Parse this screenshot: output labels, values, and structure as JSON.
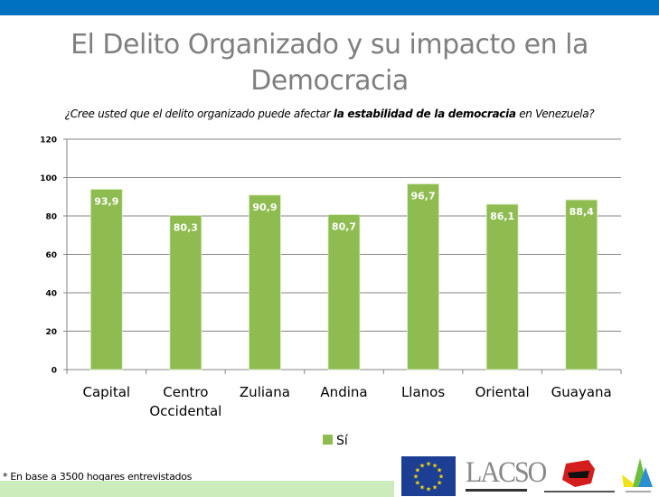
{
  "header": {
    "title_line1": "El Delito Organizado y su impacto en la",
    "title_line2": "Democracia",
    "question_prefix": "¿Cree usted que el delito organizado puede afectar ",
    "question_bold": "la estabilidad de la democracia",
    "question_suffix": " en Venezuela?"
  },
  "colors": {
    "topbar": "#0070c0",
    "bar": "#8fbc51",
    "title": "#7f7f7f",
    "footer_band": "#ccecbc"
  },
  "chart_data": {
    "type": "bar",
    "title": "¿Cree usted que el delito organizado puede afectar la estabilidad de la democracia en Venezuela?",
    "xlabel": "",
    "ylabel": "",
    "categories": [
      "Capital",
      "Centro Occidental",
      "Zuliana",
      "Andina",
      "Llanos",
      "Oriental",
      "Guayana"
    ],
    "category_lines": [
      [
        "Capital"
      ],
      [
        "Centro",
        "Occidental"
      ],
      [
        "Zuliana"
      ],
      [
        "Andina"
      ],
      [
        "Llanos"
      ],
      [
        "Oriental"
      ],
      [
        "Guayana"
      ]
    ],
    "series": [
      {
        "name": "Sí",
        "values": [
          93.9,
          80.3,
          90.9,
          80.7,
          96.7,
          86.1,
          88.4
        ],
        "labels": [
          "93,9",
          "80,3",
          "90,9",
          "80,7",
          "96,7",
          "86,1",
          "88,4"
        ]
      }
    ],
    "ylim": [
      0,
      120
    ],
    "yticks": [
      0,
      20,
      40,
      60,
      80,
      100,
      120
    ],
    "grid": true,
    "legend": "bottom-center"
  },
  "footer": {
    "note": "* En base a 3500  hogares entrevistados",
    "logos": [
      "eu-flag-logo",
      "lacso-logo",
      "ovv-logo",
      "sail-logo"
    ],
    "lacso_text": "LACSO"
  }
}
